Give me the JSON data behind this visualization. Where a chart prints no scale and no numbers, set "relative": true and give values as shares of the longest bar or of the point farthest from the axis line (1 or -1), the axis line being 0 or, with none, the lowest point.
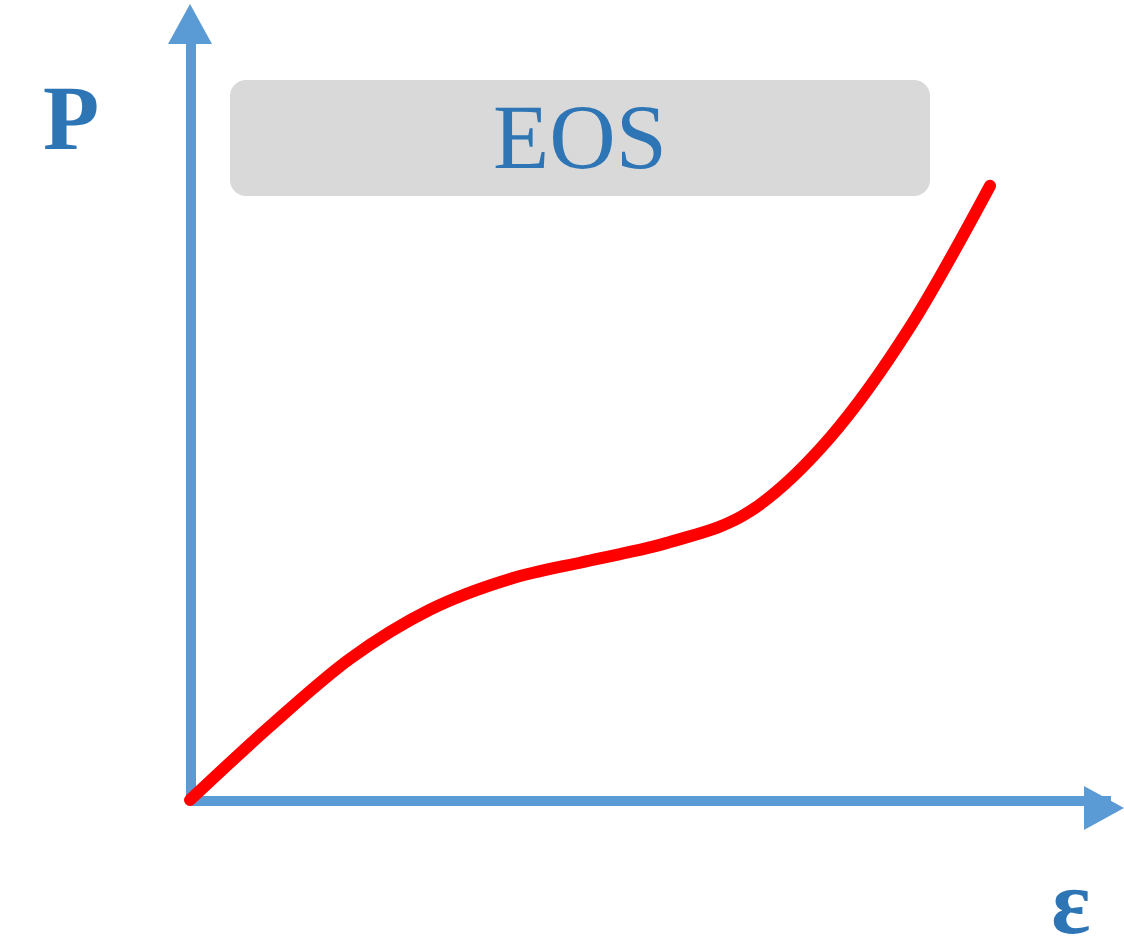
{
  "chart_data": {
    "type": "line",
    "title": "EOS",
    "xlabel": "ε",
    "ylabel": "P",
    "relative": true,
    "color": "#ff0000",
    "categories": [
      null,
      null,
      null,
      null,
      null,
      null,
      null,
      null,
      null,
      null,
      null
    ],
    "values": [
      0,
      0.12,
      0.23,
      0.31,
      0.36,
      0.39,
      0.42,
      0.47,
      0.59,
      0.77,
      1
    ]
  }
}
